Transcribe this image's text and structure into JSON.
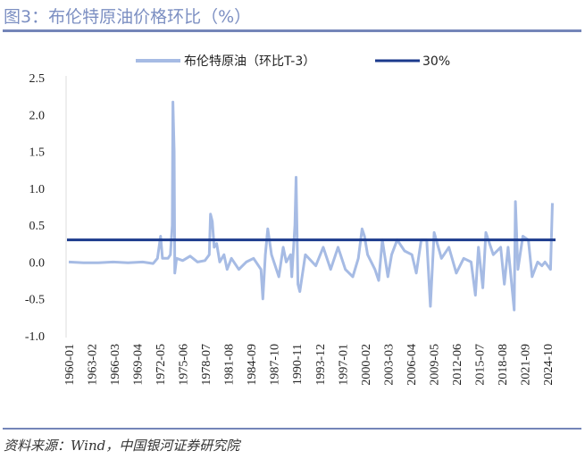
{
  "header": {
    "title": "图3：布伦特原油价格环比（%）"
  },
  "footer": {
    "source": "资料来源：Wind，中国银河证券研究院"
  },
  "chart_data": {
    "type": "line",
    "title": "图3：布伦特原油价格环比（%）",
    "xlabel": "",
    "ylabel": "",
    "ylim": [
      -1.0,
      2.5
    ],
    "yticks": [
      "2.5",
      "2.0",
      "1.5",
      "1.0",
      "0.5",
      "0.0",
      "-0.5",
      "-1.0"
    ],
    "xticks": [
      "1960-01",
      "1963-02",
      "1966-03",
      "1969-04",
      "1972-05",
      "1975-06",
      "1978-07",
      "1981-08",
      "1984-09",
      "1987-10",
      "1990-11",
      "1993-12",
      "1997-01",
      "2000-02",
      "2003-03",
      "2006-04",
      "2009-05",
      "2012-06",
      "2015-07",
      "2018-08",
      "2021-09",
      "2024-10"
    ],
    "legend_position": "top",
    "grid": false,
    "colors": {
      "series": "#a6bbe4",
      "threshold": "#1b3a8c"
    },
    "series": [
      {
        "name": "布伦特原油（环比T-3）",
        "x": [
          "1960-01",
          "1962-01",
          "1964-01",
          "1966-01",
          "1968-01",
          "1970-01",
          "1971-06",
          "1972-01",
          "1972-06",
          "1972-09",
          "1973-06",
          "1973-10",
          "1974-01",
          "1974-02",
          "1974-04",
          "1974-05",
          "1974-08",
          "1975-06",
          "1976-06",
          "1977-06",
          "1978-06",
          "1979-01",
          "1979-03",
          "1979-06",
          "1979-09",
          "1980-01",
          "1980-06",
          "1981-01",
          "1981-06",
          "1982-01",
          "1983-01",
          "1984-01",
          "1985-01",
          "1986-01",
          "1986-04",
          "1986-08",
          "1986-12",
          "1987-06",
          "1988-06",
          "1989-01",
          "1989-06",
          "1990-01",
          "1990-03",
          "1990-08",
          "1990-10",
          "1991-01",
          "1991-04",
          "1992-01",
          "1993-06",
          "1994-06",
          "1995-06",
          "1996-06",
          "1997-06",
          "1998-06",
          "1999-03",
          "1999-09",
          "2000-01",
          "2000-06",
          "2001-06",
          "2001-12",
          "2002-06",
          "2003-03",
          "2003-09",
          "2004-06",
          "2005-06",
          "2006-06",
          "2007-01",
          "2007-09",
          "2008-06",
          "2008-12",
          "2009-06",
          "2010-06",
          "2011-06",
          "2012-06",
          "2013-06",
          "2014-06",
          "2015-01",
          "2015-06",
          "2016-01",
          "2016-06",
          "2017-06",
          "2018-06",
          "2018-12",
          "2019-06",
          "2020-04",
          "2020-06",
          "2020-10",
          "2021-06",
          "2022-03",
          "2022-09",
          "2023-06",
          "2024-01",
          "2024-06",
          "2025-03",
          "2025-06"
        ],
        "values": [
          0,
          -0.01,
          -0.01,
          0,
          -0.01,
          0,
          -0.02,
          0.05,
          0.35,
          0.05,
          0.05,
          0.1,
          0.5,
          2.17,
          1.5,
          -0.15,
          0.05,
          0.02,
          0.08,
          0,
          0.02,
          0.1,
          0.65,
          0.55,
          0.2,
          0.25,
          0,
          0.1,
          -0.1,
          0.05,
          -0.1,
          0,
          0.05,
          -0.1,
          -0.5,
          0.1,
          0.45,
          0.1,
          -0.2,
          0.2,
          0,
          0.1,
          -0.2,
          0.5,
          1.15,
          -0.3,
          -0.4,
          0.1,
          -0.05,
          0.2,
          -0.1,
          0.2,
          -0.1,
          -0.2,
          0.05,
          0.45,
          0.35,
          0.1,
          -0.1,
          -0.25,
          0.3,
          -0.2,
          0.1,
          0.3,
          0.15,
          0.1,
          -0.15,
          0.3,
          0.3,
          -0.6,
          0.4,
          0.05,
          0.2,
          -0.15,
          0.05,
          0,
          -0.45,
          0.2,
          -0.35,
          0.4,
          0.1,
          0.2,
          -0.3,
          0.2,
          -0.65,
          0.82,
          -0.1,
          0.35,
          0.3,
          -0.2,
          0,
          -0.05,
          0,
          -0.1,
          0.8
        ]
      },
      {
        "name": "30%",
        "value": 0.3
      }
    ]
  }
}
